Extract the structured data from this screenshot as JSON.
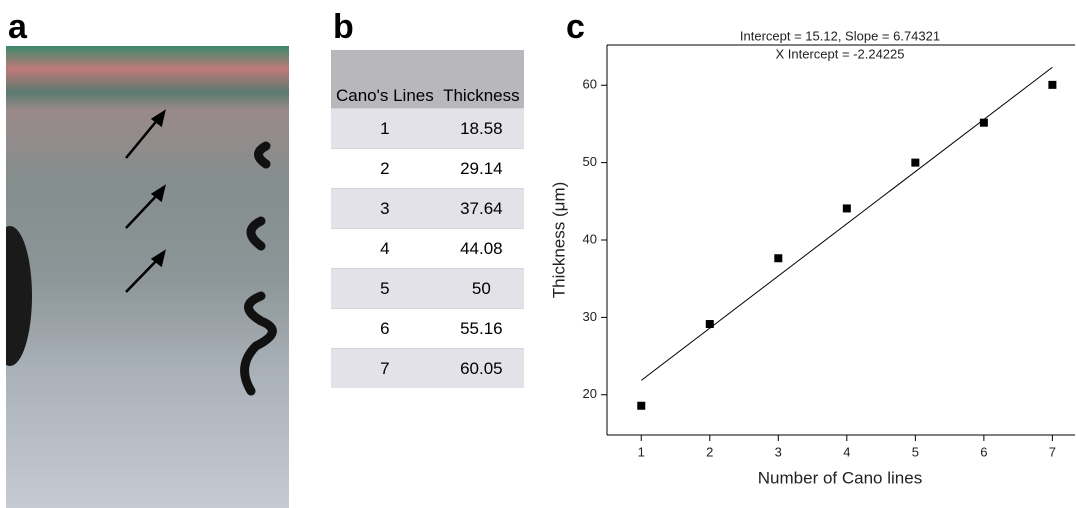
{
  "panels": {
    "a": "a",
    "b": "b",
    "c": "c"
  },
  "table": {
    "header": [
      "Cano's Lines",
      "Thickness"
    ],
    "rows": [
      [
        "1",
        "18.58"
      ],
      [
        "2",
        "29.14"
      ],
      [
        "3",
        "37.64"
      ],
      [
        "4",
        "44.08"
      ],
      [
        "5",
        "50"
      ],
      [
        "6",
        "55.16"
      ],
      [
        "7",
        "60.05"
      ]
    ]
  },
  "chart_data": {
    "type": "scatter",
    "annotations": [
      "Intercept = 15.12, Slope = 6.74321",
      "X Intercept = -2.24225"
    ],
    "xlabel": "Number of Cano lines",
    "ylabel": "Thickness (μm)",
    "x": [
      1,
      2,
      3,
      4,
      5,
      6,
      7
    ],
    "series": [
      {
        "color": "#000000",
        "values": [
          18.58,
          29.14,
          37.64,
          44.08,
          50,
          55.16,
          60.05
        ]
      }
    ],
    "fit": {
      "intercept": 15.12,
      "slope": 6.74321,
      "color": "#000000"
    },
    "xlim": [
      0.5,
      7.33
    ],
    "ylim": [
      14.8,
      65.2
    ],
    "xticks": [
      1,
      2,
      3,
      4,
      5,
      6,
      7
    ],
    "yticks": [
      20,
      30,
      40,
      50,
      60
    ]
  }
}
